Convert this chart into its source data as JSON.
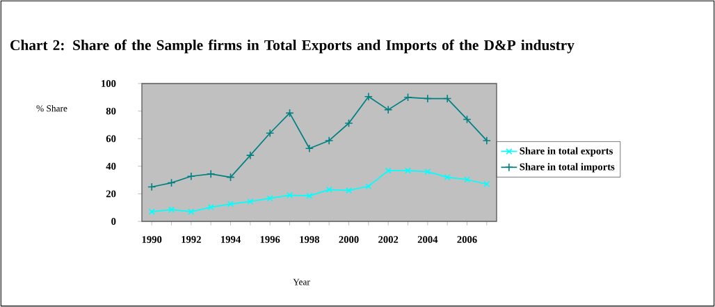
{
  "chart_data": {
    "type": "line",
    "title": "Chart 2: Share of the Sample firms in Total Exports and Imports of the D&P industry",
    "xlabel": "Year",
    "ylabel": "% Share",
    "categories": [
      "1990",
      null,
      "1992",
      null,
      "1994",
      null,
      "1996",
      null,
      "1998",
      null,
      "2000",
      null,
      "2002",
      null,
      "2004",
      null,
      "2006",
      null
    ],
    "series": [
      {
        "name": "Share in total  exports",
        "color": "#00ffff",
        "marker": "cross",
        "values": [
          7,
          8.5,
          7,
          10.3,
          12.6,
          14.4,
          16.7,
          19,
          18.5,
          23,
          22.4,
          25.5,
          36.8,
          36.8,
          36,
          32,
          30.3,
          27
        ]
      },
      {
        "name": "Share in total  imports",
        "color": "#008080",
        "marker": "plus",
        "values": [
          25,
          28,
          32.7,
          34.4,
          32,
          47.9,
          64,
          78.6,
          52.9,
          58.6,
          71.2,
          90.5,
          81,
          90,
          89.1,
          89.1,
          74,
          58.6
        ]
      }
    ],
    "ylim": [
      0,
      100
    ],
    "yticks": [
      0,
      20,
      40,
      60,
      80,
      100
    ],
    "legend": "right"
  }
}
